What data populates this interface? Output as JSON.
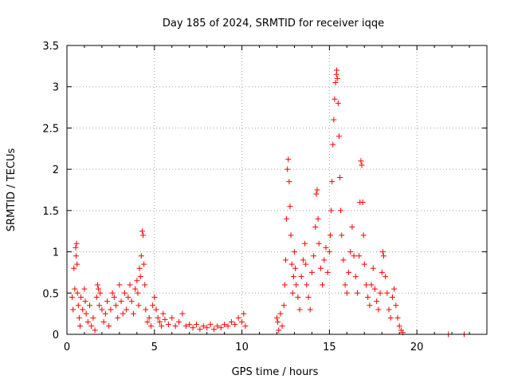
{
  "chart_data": {
    "type": "scatter",
    "title": "Day 185 of 2024, SRMTID for receiver iqqe",
    "xlabel": "GPS time / hours",
    "ylabel": "SRMTID / TECUs",
    "xlim": [
      0,
      24
    ],
    "ylim": [
      0,
      3.5
    ],
    "x_ticks": [
      0,
      5,
      10,
      15,
      20
    ],
    "x_tick_labels": [
      "0",
      "5",
      "10",
      "15",
      "20"
    ],
    "y_ticks": [
      0,
      0.5,
      1,
      1.5,
      2,
      2.5,
      3,
      3.5
    ],
    "y_tick_labels": [
      "0",
      "0.5",
      "1",
      "1.5",
      "2",
      "2.5",
      "3",
      "3.5"
    ],
    "grid": true,
    "marker": "+",
    "color": "#ff0000",
    "series": [
      {
        "name": "SRMTID",
        "points": [
          [
            0.3,
            0.45
          ],
          [
            0.35,
            0.3
          ],
          [
            0.4,
            0.8
          ],
          [
            0.45,
            0.55
          ],
          [
            0.5,
            1.05
          ],
          [
            0.52,
            0.95
          ],
          [
            0.55,
            1.1
          ],
          [
            0.58,
            0.85
          ],
          [
            0.6,
            0.5
          ],
          [
            0.65,
            0.35
          ],
          [
            0.7,
            0.2
          ],
          [
            0.75,
            0.1
          ],
          [
            0.8,
            0.45
          ],
          [
            0.9,
            0.3
          ],
          [
            1.0,
            0.55
          ],
          [
            1.05,
            0.4
          ],
          [
            1.1,
            0.25
          ],
          [
            1.2,
            0.15
          ],
          [
            1.3,
            0.35
          ],
          [
            1.4,
            0.1
          ],
          [
            1.5,
            0.2
          ],
          [
            1.6,
            0.05
          ],
          [
            1.7,
            0.45
          ],
          [
            1.75,
            0.6
          ],
          [
            1.8,
            0.55
          ],
          [
            1.85,
            0.35
          ],
          [
            1.9,
            0.5
          ],
          [
            2.0,
            0.3
          ],
          [
            2.1,
            0.15
          ],
          [
            2.2,
            0.25
          ],
          [
            2.3,
            0.4
          ],
          [
            2.4,
            0.1
          ],
          [
            2.5,
            0.3
          ],
          [
            2.6,
            0.5
          ],
          [
            2.7,
            0.45
          ],
          [
            2.8,
            0.35
          ],
          [
            2.9,
            0.2
          ],
          [
            3.0,
            0.6
          ],
          [
            3.1,
            0.4
          ],
          [
            3.2,
            0.25
          ],
          [
            3.3,
            0.5
          ],
          [
            3.4,
            0.3
          ],
          [
            3.5,
            0.45
          ],
          [
            3.6,
            0.6
          ],
          [
            3.7,
            0.4
          ],
          [
            3.8,
            0.25
          ],
          [
            3.9,
            0.55
          ],
          [
            4.0,
            0.65
          ],
          [
            4.05,
            0.5
          ],
          [
            4.1,
            0.35
          ],
          [
            4.15,
            0.8
          ],
          [
            4.2,
            0.7
          ],
          [
            4.25,
            0.95
          ],
          [
            4.3,
            1.25
          ],
          [
            4.35,
            1.2
          ],
          [
            4.4,
            0.85
          ],
          [
            4.45,
            0.6
          ],
          [
            4.5,
            0.3
          ],
          [
            4.6,
            0.15
          ],
          [
            4.7,
            0.2
          ],
          [
            4.8,
            0.1
          ],
          [
            4.9,
            0.35
          ],
          [
            5.0,
            0.45
          ],
          [
            5.1,
            0.3
          ],
          [
            5.2,
            0.2
          ],
          [
            5.3,
            0.15
          ],
          [
            5.4,
            0.1
          ],
          [
            5.5,
            0.25
          ],
          [
            5.6,
            0.18
          ],
          [
            5.8,
            0.12
          ],
          [
            6.0,
            0.2
          ],
          [
            6.2,
            0.1
          ],
          [
            6.4,
            0.15
          ],
          [
            6.6,
            0.25
          ],
          [
            6.8,
            0.1
          ],
          [
            7.0,
            0.12
          ],
          [
            7.2,
            0.08
          ],
          [
            7.4,
            0.12
          ],
          [
            7.6,
            0.06
          ],
          [
            7.8,
            0.1
          ],
          [
            8.0,
            0.08
          ],
          [
            8.2,
            0.12
          ],
          [
            8.4,
            0.06
          ],
          [
            8.6,
            0.1
          ],
          [
            8.8,
            0.08
          ],
          [
            9.0,
            0.12
          ],
          [
            9.2,
            0.1
          ],
          [
            9.4,
            0.15
          ],
          [
            9.6,
            0.12
          ],
          [
            9.8,
            0.2
          ],
          [
            10.0,
            0.15
          ],
          [
            10.1,
            0.25
          ],
          [
            10.2,
            0.1
          ],
          [
            12.0,
            0.2
          ],
          [
            12.05,
            0.15
          ],
          [
            12.1,
            0.05
          ],
          [
            12.2,
            0.25
          ],
          [
            12.3,
            0.1
          ],
          [
            12.4,
            0.35
          ],
          [
            12.45,
            0.6
          ],
          [
            12.5,
            0.9
          ],
          [
            12.55,
            1.4
          ],
          [
            12.6,
            2.0
          ],
          [
            12.65,
            2.12
          ],
          [
            12.7,
            1.85
          ],
          [
            12.75,
            1.55
          ],
          [
            12.8,
            1.2
          ],
          [
            12.85,
            0.85
          ],
          [
            12.9,
            0.5
          ],
          [
            12.95,
            0.7
          ],
          [
            13.0,
            1.0
          ],
          [
            13.05,
            0.8
          ],
          [
            13.1,
            0.6
          ],
          [
            13.2,
            0.45
          ],
          [
            13.3,
            0.3
          ],
          [
            13.4,
            0.7
          ],
          [
            13.5,
            0.9
          ],
          [
            13.6,
            1.1
          ],
          [
            13.65,
            0.85
          ],
          [
            13.7,
            0.6
          ],
          [
            13.8,
            0.45
          ],
          [
            13.9,
            0.3
          ],
          [
            14.0,
            0.75
          ],
          [
            14.1,
            0.95
          ],
          [
            14.2,
            1.3
          ],
          [
            14.25,
            1.7
          ],
          [
            14.3,
            1.75
          ],
          [
            14.35,
            1.4
          ],
          [
            14.4,
            1.1
          ],
          [
            14.5,
            0.8
          ],
          [
            14.6,
            0.6
          ],
          [
            14.7,
            0.9
          ],
          [
            14.8,
            1.05
          ],
          [
            14.9,
            0.75
          ],
          [
            15.0,
            1.0
          ],
          [
            15.05,
            1.2
          ],
          [
            15.1,
            1.5
          ],
          [
            15.15,
            1.85
          ],
          [
            15.2,
            2.3
          ],
          [
            15.25,
            2.6
          ],
          [
            15.3,
            2.85
          ],
          [
            15.35,
            3.05
          ],
          [
            15.4,
            3.15
          ],
          [
            15.42,
            3.2
          ],
          [
            15.45,
            3.1
          ],
          [
            15.5,
            2.8
          ],
          [
            15.55,
            2.4
          ],
          [
            15.6,
            1.9
          ],
          [
            15.65,
            1.5
          ],
          [
            15.7,
            1.2
          ],
          [
            15.8,
            0.9
          ],
          [
            15.9,
            0.6
          ],
          [
            16.0,
            0.5
          ],
          [
            16.1,
            0.75
          ],
          [
            16.2,
            1.0
          ],
          [
            16.3,
            1.3
          ],
          [
            16.4,
            0.95
          ],
          [
            16.5,
            0.7
          ],
          [
            16.6,
            0.5
          ],
          [
            16.7,
            0.95
          ],
          [
            16.75,
            1.6
          ],
          [
            16.8,
            2.1
          ],
          [
            16.85,
            2.05
          ],
          [
            16.9,
            1.6
          ],
          [
            16.95,
            1.2
          ],
          [
            17.0,
            0.85
          ],
          [
            17.1,
            0.6
          ],
          [
            17.2,
            0.45
          ],
          [
            17.3,
            0.35
          ],
          [
            17.4,
            0.6
          ],
          [
            17.5,
            0.8
          ],
          [
            17.6,
            0.55
          ],
          [
            17.7,
            0.4
          ],
          [
            17.8,
            0.3
          ],
          [
            17.9,
            0.5
          ],
          [
            18.0,
            0.75
          ],
          [
            18.05,
            1.0
          ],
          [
            18.1,
            0.95
          ],
          [
            18.2,
            0.7
          ],
          [
            18.3,
            0.5
          ],
          [
            18.4,
            0.3
          ],
          [
            18.5,
            0.2
          ],
          [
            18.6,
            0.45
          ],
          [
            18.7,
            0.55
          ],
          [
            18.8,
            0.35
          ],
          [
            18.9,
            0.2
          ],
          [
            19.0,
            0.1
          ],
          [
            19.1,
            0.05
          ],
          [
            19.2,
            0.02
          ],
          [
            21.8,
            0.0
          ],
          [
            22.7,
            0.0
          ]
        ]
      }
    ]
  }
}
